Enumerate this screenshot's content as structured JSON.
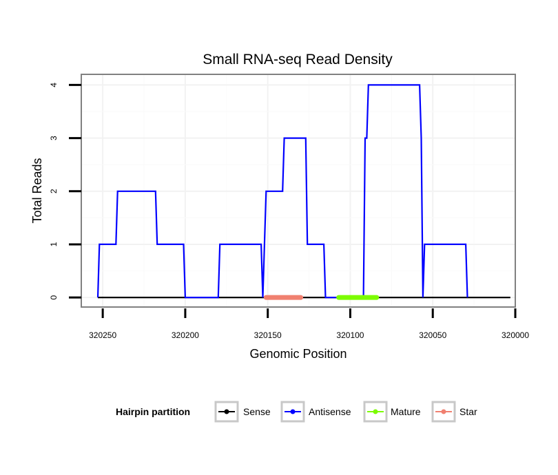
{
  "chart_data": {
    "type": "line",
    "title": "Small RNA-seq Read Density",
    "xlabel": "Genomic Position",
    "ylabel": "Total Reads",
    "xlim": [
      320263,
      320000
    ],
    "ylim": [
      -0.18,
      4.2
    ],
    "x_reversed": true,
    "grid": true,
    "x_ticks": [
      320250,
      320200,
      320150,
      320100,
      320050,
      320000
    ],
    "x_tick_labels": [
      "320250",
      "320200",
      "320150",
      "320100",
      "320050",
      "320000"
    ],
    "y_ticks": [
      0,
      1,
      2,
      3,
      4
    ],
    "y_tick_labels": [
      "0",
      "1",
      "2",
      "3",
      "4"
    ],
    "legend": {
      "title": "Hairpin partition",
      "position": "bottom",
      "entries": [
        {
          "name": "Sense",
          "color": "#000000"
        },
        {
          "name": "Antisense",
          "color": "#0000ff"
        },
        {
          "name": "Mature",
          "color": "#7cfc00"
        },
        {
          "name": "Star",
          "color": "#f08070"
        }
      ]
    },
    "series": [
      {
        "name": "Sense",
        "color": "#000000",
        "x": [
          320253,
          320003
        ],
        "y": [
          0,
          0
        ]
      },
      {
        "name": "Antisense",
        "color": "#0000ff",
        "x": [
          320253,
          320252,
          320242,
          320241,
          320218,
          320217,
          320201,
          320200,
          320180,
          320179,
          320154,
          320153,
          320152,
          320151,
          320141,
          320140,
          320127,
          320126,
          320116,
          320115,
          320092,
          320091,
          320090,
          320089,
          320058,
          320057,
          320056,
          320055,
          320030,
          320029
        ],
        "y": [
          0,
          1,
          1,
          2,
          2,
          1,
          1,
          0,
          0,
          1,
          1,
          0,
          1,
          2,
          2,
          3,
          3,
          1,
          1,
          0,
          0,
          3,
          3,
          4,
          4,
          3,
          0,
          1,
          1,
          0
        ]
      },
      {
        "name": "Star",
        "color": "#f08070",
        "x": [
          320151,
          320130
        ],
        "y": [
          0,
          0
        ]
      },
      {
        "name": "Mature",
        "color": "#7cfc00",
        "x": [
          320107,
          320084
        ],
        "y": [
          0,
          0
        ]
      }
    ]
  }
}
